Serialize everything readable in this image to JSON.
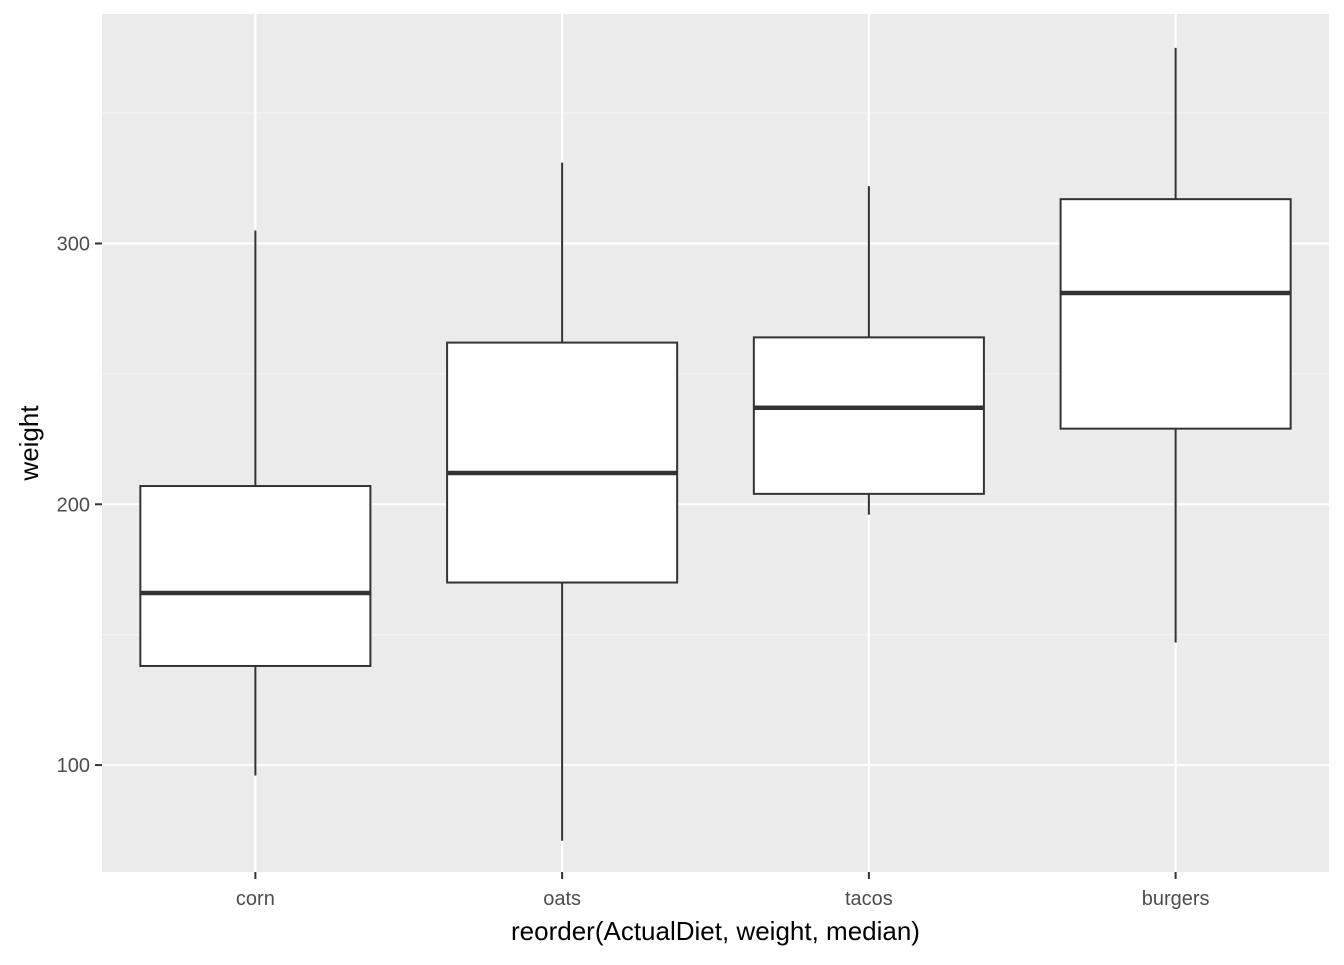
{
  "chart_data": {
    "type": "boxplot",
    "title": "",
    "xlabel": "reorder(ActualDiet, weight, median)",
    "ylabel": "weight",
    "ylim": [
      59,
      388
    ],
    "yticks": [
      100,
      200,
      300
    ],
    "grid": true,
    "categories": [
      "corn",
      "oats",
      "tacos",
      "burgers"
    ],
    "boxes": [
      {
        "category": "corn",
        "whisker_low": 96,
        "q1": 138,
        "median": 166,
        "q3": 207,
        "whisker_high": 305
      },
      {
        "category": "oats",
        "whisker_low": 71,
        "q1": 170,
        "median": 212,
        "q3": 262,
        "whisker_high": 331
      },
      {
        "category": "tacos",
        "whisker_low": 196,
        "q1": 204,
        "median": 237,
        "q3": 264,
        "whisker_high": 322
      },
      {
        "category": "burgers",
        "whisker_low": 147,
        "q1": 229,
        "median": 281,
        "q3": 317,
        "whisker_high": 375
      }
    ],
    "colors": {
      "panel_background": "#ebebeb",
      "grid_major": "#ffffff",
      "grid_minor": "#f5f5f5",
      "box_fill": "#ffffff",
      "box_line": "#333333",
      "tick_text": "#4d4d4d",
      "axis_title": "#000000"
    }
  }
}
